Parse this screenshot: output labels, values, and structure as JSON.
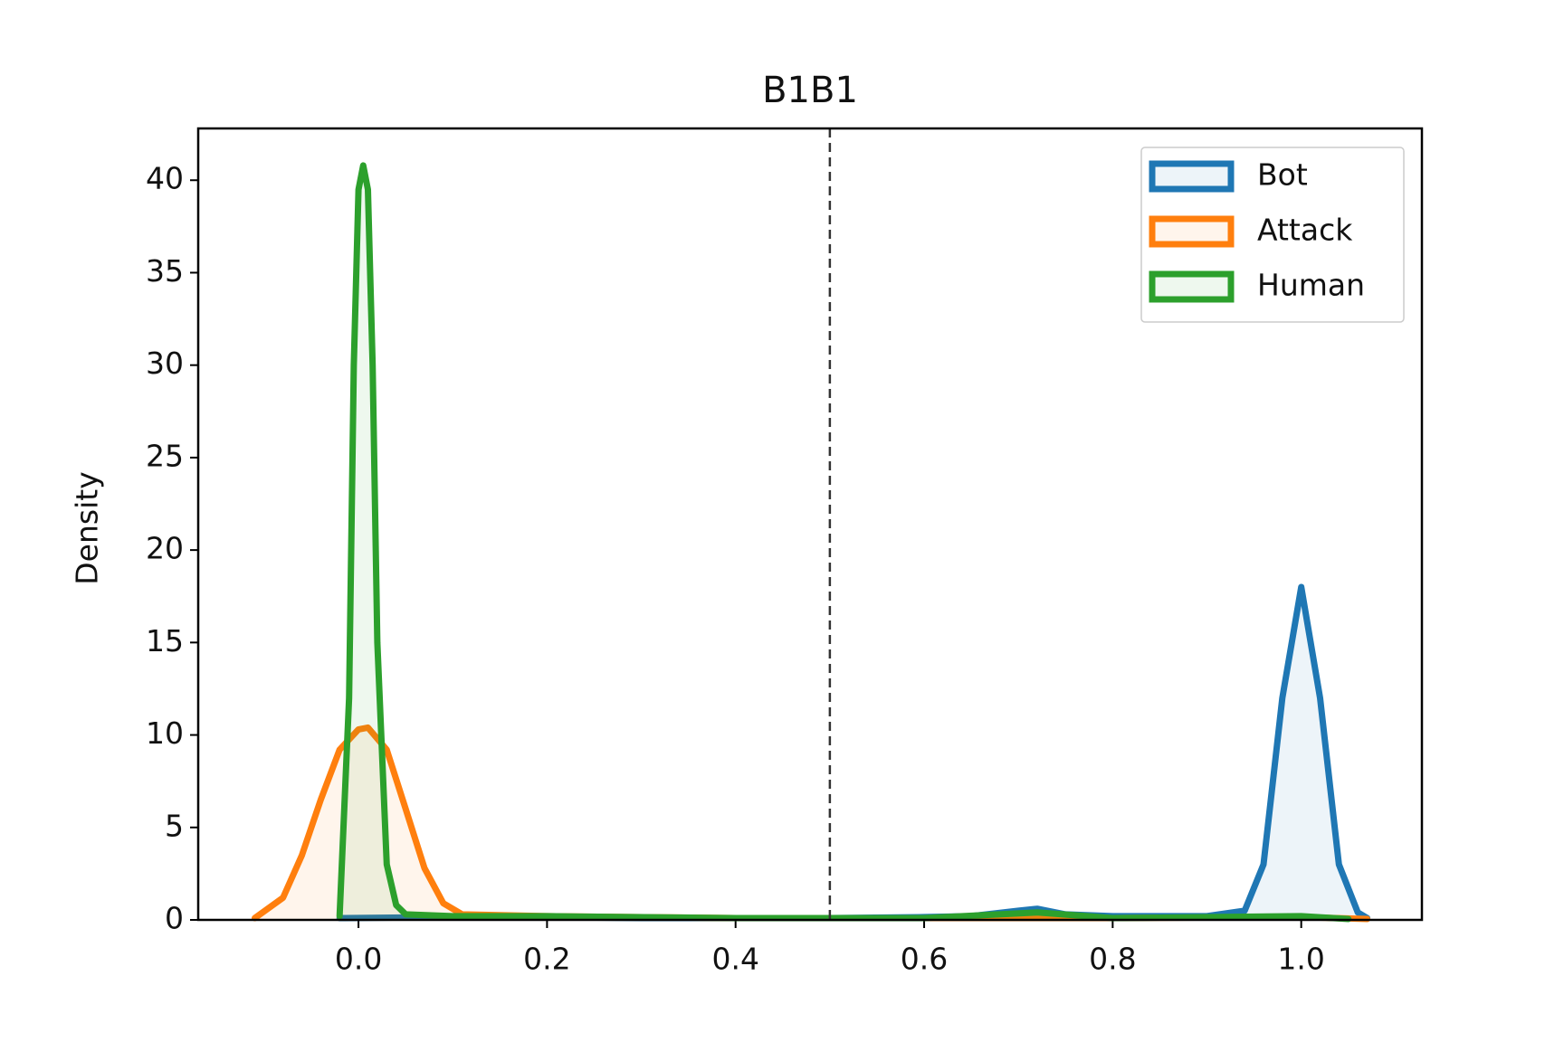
{
  "chart_data": {
    "type": "line",
    "title": "B1B1",
    "y_label": "Density",
    "xlim": [
      -0.17,
      1.128
    ],
    "ylim": [
      0,
      42.8
    ],
    "xticks": [
      {
        "value": 0,
        "label": "0.0"
      },
      0.2,
      0.4,
      0.6,
      0.8,
      {
        "value": 1,
        "label": "1.0"
      }
    ],
    "yticks": [
      0,
      5,
      10,
      15,
      20,
      25,
      30,
      35,
      40
    ],
    "vline": 0.5,
    "legend": "upper right",
    "fill": true,
    "series": [
      {
        "name": "Bot",
        "color": "#1f77b4",
        "x": [
          -0.02,
          0.1,
          0.2,
          0.3,
          0.4,
          0.5,
          0.6,
          0.65,
          0.7,
          0.72,
          0.75,
          0.8,
          0.9,
          0.94,
          0.96,
          0.98,
          1.0,
          1.02,
          1.04,
          1.06,
          1.07
        ],
        "values": [
          0.1,
          0.15,
          0.15,
          0.1,
          0.1,
          0.1,
          0.15,
          0.2,
          0.5,
          0.6,
          0.3,
          0.2,
          0.2,
          0.5,
          3,
          12,
          18,
          12,
          3,
          0.4,
          0.1
        ]
      },
      {
        "name": "Attack",
        "color": "#ff7f0e",
        "x": [
          -0.11,
          -0.08,
          -0.06,
          -0.04,
          -0.02,
          0,
          0.01,
          0.03,
          0.05,
          0.07,
          0.09,
          0.11,
          0.2,
          0.4,
          0.6,
          0.8,
          1.0,
          1.07
        ],
        "values": [
          0.1,
          1.2,
          3.5,
          6.5,
          9.2,
          10.3,
          10.4,
          9.2,
          6,
          2.8,
          0.9,
          0.3,
          0.2,
          0.1,
          0.1,
          0.1,
          0.15,
          0.05
        ]
      },
      {
        "name": "Human",
        "color": "#2ca02c",
        "x": [
          -0.02,
          -0.01,
          -0.005,
          0,
          0.005,
          0.01,
          0.015,
          0.02,
          0.03,
          0.04,
          0.05,
          0.1,
          0.2,
          0.4,
          0.6,
          0.72,
          0.8,
          1.0,
          1.05
        ],
        "values": [
          0.2,
          12,
          30,
          39.5,
          40.8,
          39.5,
          30,
          15,
          3,
          0.8,
          0.3,
          0.2,
          0.2,
          0.1,
          0.1,
          0.4,
          0.1,
          0.2,
          0.05
        ]
      }
    ]
  }
}
